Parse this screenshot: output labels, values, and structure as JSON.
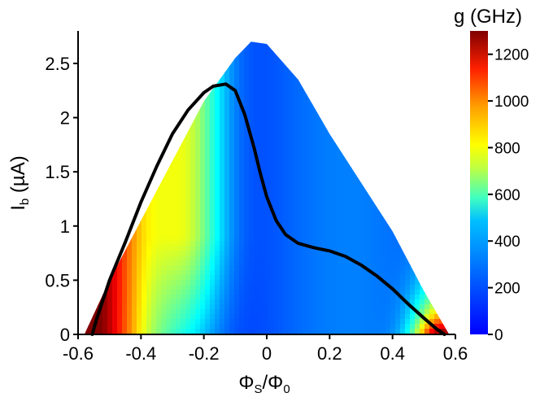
{
  "chart_data": {
    "type": "heatmap",
    "title": "",
    "xlabel": "ΦS/Φ0",
    "ylabel": "Ib (µA)",
    "xlim": [
      -0.6,
      0.6
    ],
    "ylim": [
      0,
      2.8
    ],
    "x_ticks": [
      "-0.6",
      "-0.4",
      "-0.2",
      "0",
      "0.2",
      "0.4",
      "0.6"
    ],
    "x_tick_values": [
      -0.6,
      -0.4,
      -0.2,
      0,
      0.2,
      0.4,
      0.6
    ],
    "y_ticks": [
      "0",
      "0.5",
      "1",
      "1.5",
      "2",
      "2.5"
    ],
    "y_tick_values": [
      0,
      0.5,
      1,
      1.5,
      2,
      2.5
    ],
    "colorbar": {
      "title": "g (GHz)",
      "range": [
        0,
        1300
      ],
      "ticks": [
        "0",
        "200",
        "400",
        "600",
        "800",
        "1000",
        "1200"
      ],
      "tick_values": [
        0,
        200,
        400,
        600,
        800,
        1000,
        1200
      ],
      "colormap": "jet"
    },
    "boundary": {
      "x": [
        -0.58,
        -0.5,
        -0.4,
        -0.3,
        -0.2,
        -0.1,
        -0.05,
        0.0,
        0.1,
        0.2,
        0.3,
        0.4,
        0.5,
        0.58
      ],
      "y": [
        0.0,
        0.5,
        1.05,
        1.6,
        2.15,
        2.55,
        2.7,
        2.68,
        2.35,
        1.85,
        1.4,
        0.95,
        0.4,
        0.0
      ]
    },
    "series": [
      {
        "type": "line",
        "color": "#000000",
        "x": [
          -0.555,
          -0.54,
          -0.5,
          -0.45,
          -0.4,
          -0.35,
          -0.3,
          -0.25,
          -0.2,
          -0.17,
          -0.13,
          -0.1,
          -0.07,
          -0.04,
          -0.02,
          0.0,
          0.03,
          0.06,
          0.1,
          0.15,
          0.2,
          0.25,
          0.3,
          0.35,
          0.4,
          0.45,
          0.5,
          0.54,
          0.565
        ],
        "y": [
          0.0,
          0.15,
          0.5,
          0.85,
          1.22,
          1.55,
          1.85,
          2.07,
          2.23,
          2.29,
          2.31,
          2.25,
          2.03,
          1.72,
          1.48,
          1.27,
          1.05,
          0.92,
          0.84,
          0.8,
          0.77,
          0.72,
          0.64,
          0.54,
          0.42,
          0.28,
          0.15,
          0.05,
          0.0
        ]
      }
    ]
  }
}
